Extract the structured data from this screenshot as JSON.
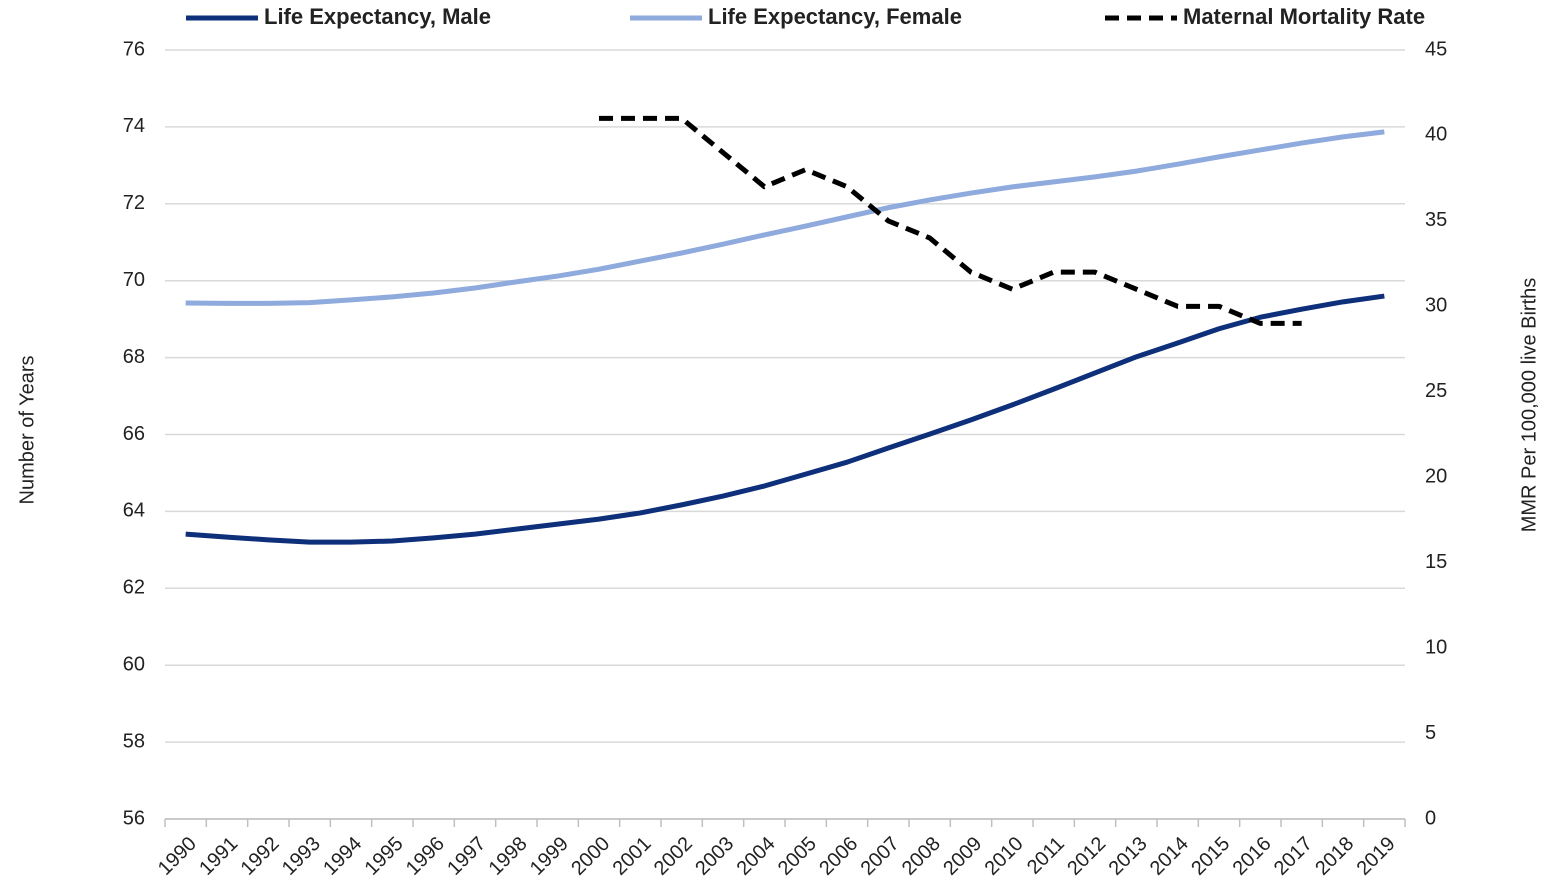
{
  "chart_data": {
    "type": "line",
    "categories": [
      "1990",
      "1991",
      "1992",
      "1993",
      "1994",
      "1995",
      "1996",
      "1997",
      "1998",
      "1999",
      "2000",
      "2001",
      "2002",
      "2003",
      "2004",
      "2005",
      "2006",
      "2007",
      "2008",
      "2009",
      "2010",
      "2011",
      "2012",
      "2013",
      "2014",
      "2015",
      "2016",
      "2017",
      "2018",
      "2019"
    ],
    "series": [
      {
        "name": "Life Expectancy, Male",
        "color": "#0e2f7a",
        "dash": false,
        "values": [
          63.41,
          63.33,
          63.26,
          63.2,
          63.2,
          63.23,
          63.31,
          63.41,
          63.54,
          63.67,
          63.8,
          63.96,
          64.17,
          64.4,
          64.66,
          64.97,
          65.28,
          65.65,
          66.01,
          66.38,
          66.77,
          67.18,
          67.6,
          68.02,
          68.38,
          68.75,
          69.05,
          69.26,
          69.45,
          69.6
        ]
      },
      {
        "name": "Life Expectancy, Female",
        "color": "#8faadc",
        "dash": false,
        "values": [
          69.42,
          69.41,
          69.41,
          69.43,
          69.5,
          69.58,
          69.68,
          69.81,
          69.97,
          70.12,
          70.3,
          70.51,
          70.72,
          70.95,
          71.19,
          71.42,
          71.66,
          71.9,
          72.1,
          72.28,
          72.44,
          72.57,
          72.7,
          72.85,
          73.03,
          73.22,
          73.4,
          73.58,
          73.74,
          73.87
        ]
      },
      {
        "name": "Maternal Mortality Rate",
        "color": "#000000",
        "dash": true,
        "axis": "y2",
        "values": [
          null,
          null,
          null,
          null,
          null,
          null,
          null,
          null,
          null,
          null,
          41,
          41,
          41,
          39,
          37,
          38,
          37,
          35,
          34,
          32,
          31,
          32,
          32,
          31,
          30,
          30,
          29,
          29,
          null,
          null
        ]
      }
    ],
    "ylabel": "Number of Years",
    "y2label": "MMR Per 100,000 live Births",
    "ylim": [
      56,
      76
    ],
    "yticks": [
      56,
      58,
      60,
      62,
      64,
      66,
      68,
      70,
      72,
      74,
      76
    ],
    "y2lim": [
      0,
      45
    ],
    "y2ticks": [
      0,
      5,
      10,
      15,
      20,
      25,
      30,
      35,
      40,
      45
    ],
    "grid": true,
    "legend": "top"
  }
}
